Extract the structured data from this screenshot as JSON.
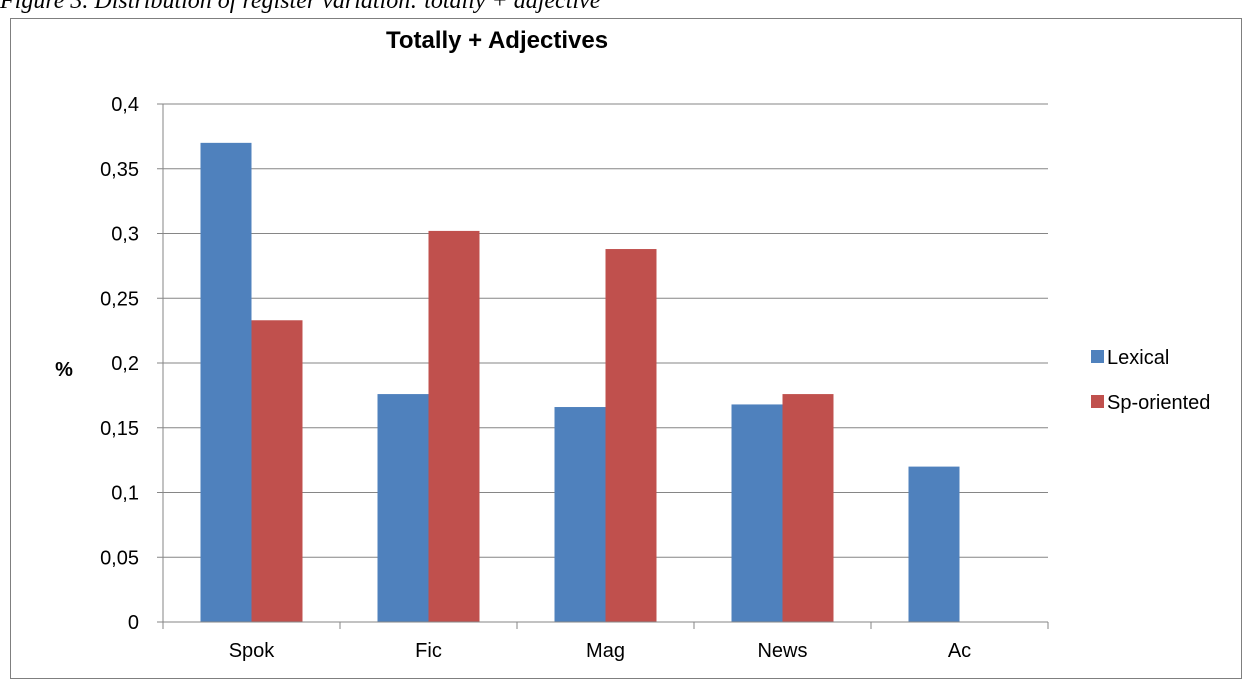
{
  "caption": "Figure 3. Distribution of register variation: totally + adjective",
  "chart_data": {
    "type": "bar",
    "title": "Totally + Adjectives",
    "xlabel": "",
    "ylabel": "%",
    "categories": [
      "Spok",
      "Fic",
      "Mag",
      "News",
      "Ac"
    ],
    "series": [
      {
        "name": "Lexical",
        "color": "#4f81bd",
        "values": [
          0.37,
          0.176,
          0.166,
          0.168,
          0.12
        ]
      },
      {
        "name": "Sp-oriented",
        "color": "#c0504d",
        "values": [
          0.233,
          0.302,
          0.288,
          0.176,
          0
        ]
      }
    ],
    "ylim": [
      0,
      0.4
    ],
    "yticks": [
      "0",
      "0,05",
      "0,1",
      "0,15",
      "0,2",
      "0,25",
      "0,3",
      "0,35",
      "0,4"
    ],
    "grid": true,
    "legend": "right"
  }
}
